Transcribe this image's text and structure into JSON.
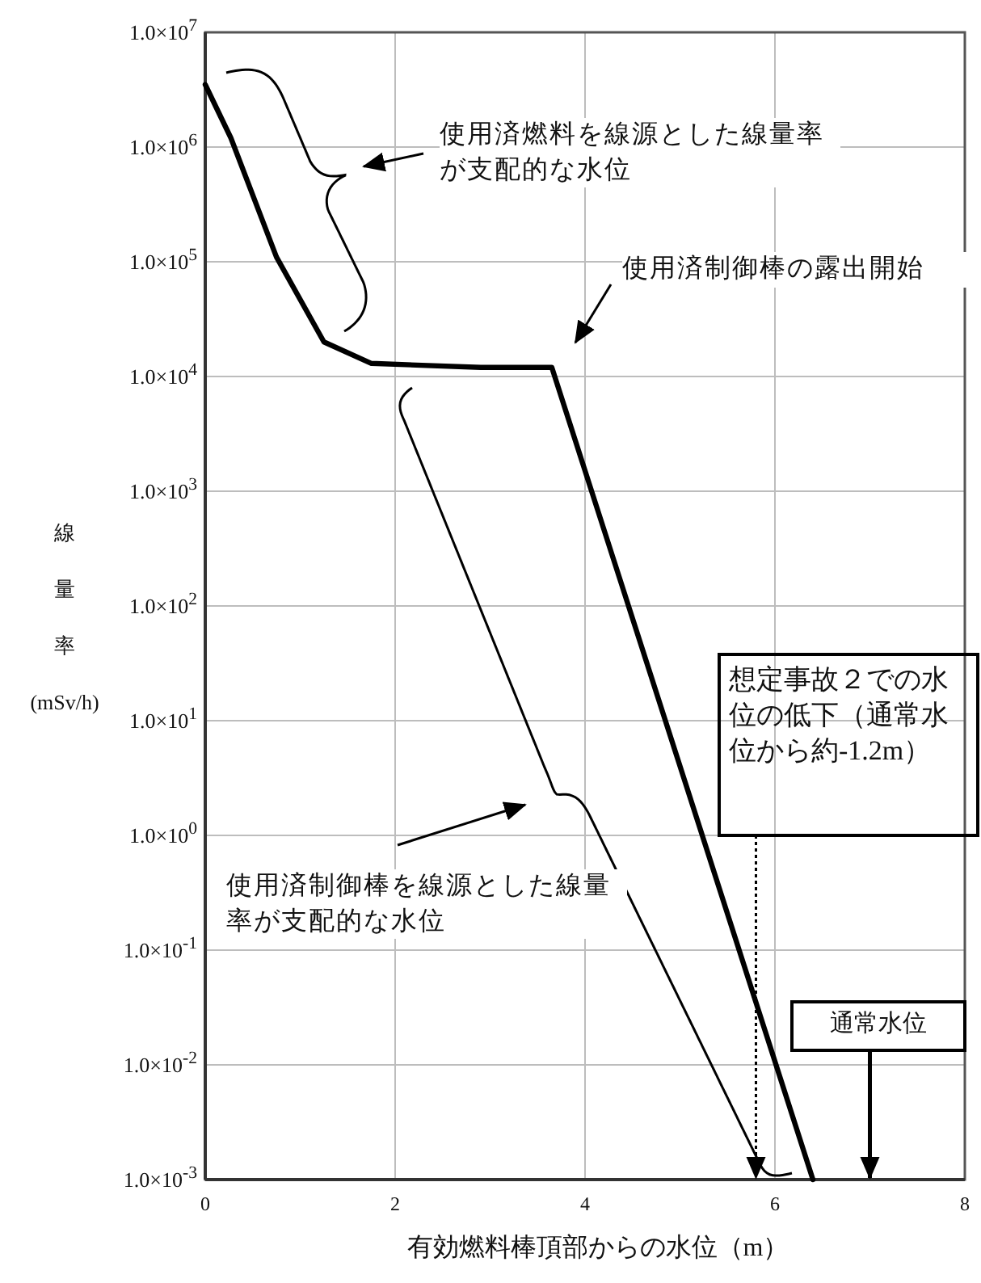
{
  "chart_data": {
    "type": "line",
    "xlabel": "有効燃料棒頂部からの水位（m）",
    "ylabel": "線量率(mSv/h)",
    "log": "y",
    "grid": true,
    "marker": "none",
    "line_style": "solid",
    "xlim": [
      0,
      8
    ],
    "xticks": [
      0,
      2,
      4,
      6,
      8
    ],
    "ylim": [
      0.001,
      10000000
    ],
    "yticks": [
      {
        "value": 0.001,
        "label": "1.0×10$^{-3}$"
      },
      {
        "value": 0.01,
        "label": "1.0×10$^{-2}$"
      },
      {
        "value": 0.1,
        "label": "1.0×10$^{-1}$"
      },
      {
        "value": 1,
        "label": "1.0×10$^{0}$"
      },
      {
        "value": 10,
        "label": "1.0×10$^{1}$"
      },
      {
        "value": 100,
        "label": "1.0×10$^{2}$"
      },
      {
        "value": 1000,
        "label": "1.0×10$^{3}$"
      },
      {
        "value": 10000,
        "label": "1.0×10$^{4}$"
      },
      {
        "value": 100000,
        "label": "1.0×10$^{5}$"
      },
      {
        "value": 1000000,
        "label": "1.0×10$^{6}$"
      },
      {
        "value": 10000000,
        "label": "1.0×10$^{7}$"
      }
    ],
    "series": [
      {
        "color": "#000000",
        "x": [
          0,
          0.27,
          0.75,
          1.25,
          1.75,
          2.9,
          3.65,
          6.4
        ],
        "values": [
          3500000,
          1200000,
          110000,
          20000,
          13000,
          12000,
          12000,
          0.001
        ]
      }
    ],
    "annotations": [
      "使用済燃料を線源とした線量率が支配的な水位",
      "使用済制御棒の露出開始",
      "使用済制御棒を線源とした線量率が支配的な水位"
    ],
    "ref_lines": [
      {
        "axis": "x",
        "value": 5.8,
        "label": "想定事故２での水位の低下（通常水位から約-1.2m）",
        "line_style": "dotted",
        "color": "#000000"
      },
      {
        "axis": "x",
        "value": 7.0,
        "label": "通常水位",
        "line_style": "solid",
        "color": "#000000"
      }
    ]
  }
}
